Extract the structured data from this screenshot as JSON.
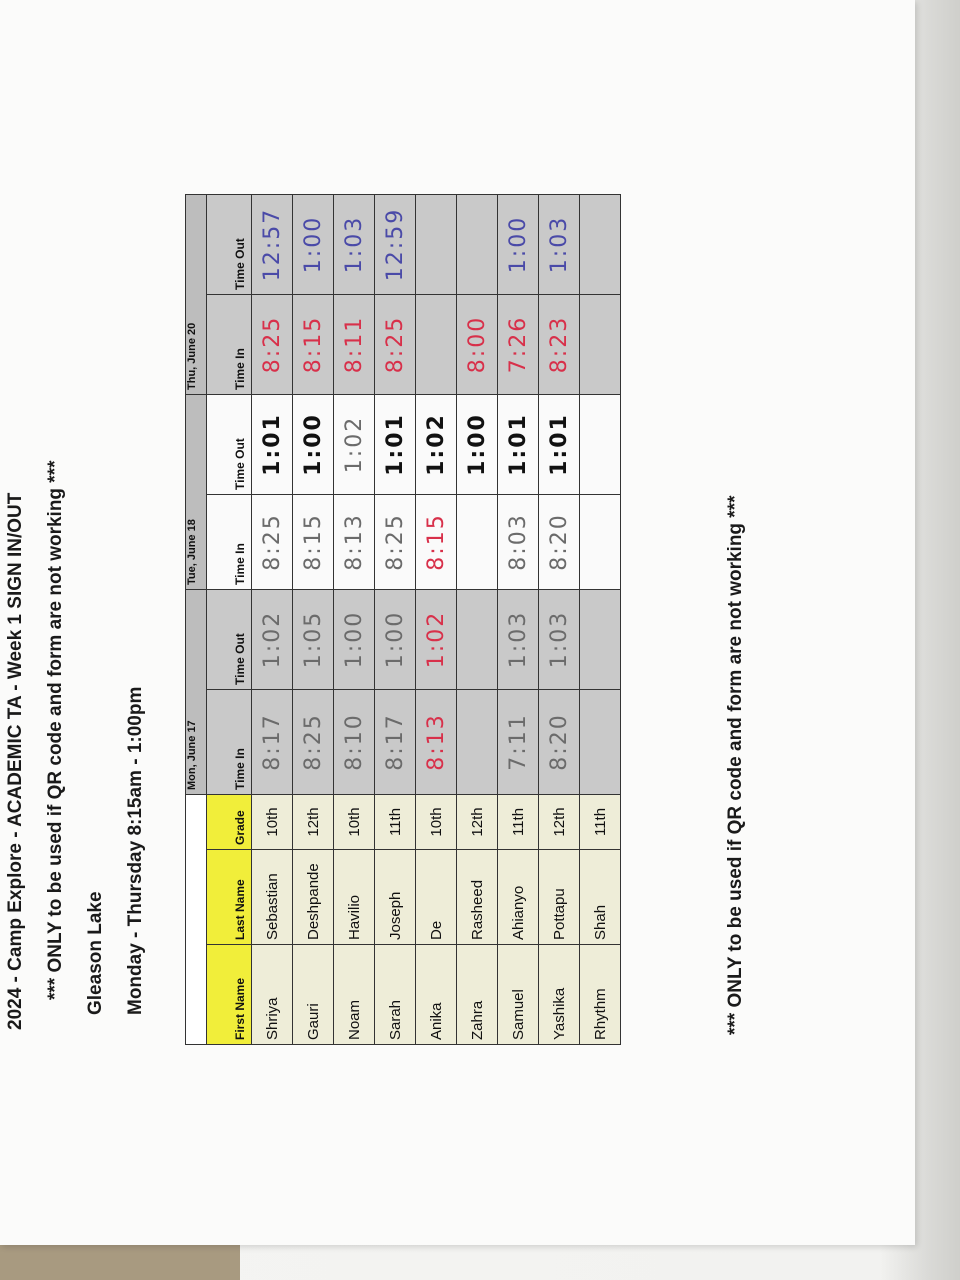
{
  "header": {
    "title": "2024 - Camp Explore - ACADEMIC TA - Week 1 SIGN IN/OUT",
    "notice": "*** ONLY to be used if QR code and form are not working ***",
    "location": "Gleason Lake",
    "schedule": "Monday - Thursday 8:15am - 1:00pm"
  },
  "table": {
    "days": [
      "Mon, June 17",
      "Tue, June 18",
      "Thu, June 20"
    ],
    "columns": [
      "First Name",
      "Last Name",
      "Grade",
      "Time In",
      "Time Out",
      "Time In",
      "Time Out",
      "Time In",
      "Time Out"
    ],
    "rows": [
      {
        "first": "Shriya",
        "last": "Sebastian",
        "grade": "10th",
        "times": [
          [
            "8:17",
            "pencil"
          ],
          [
            "1:02",
            "pencil"
          ],
          [
            "8:25",
            "pencil"
          ],
          [
            "1:01",
            "black"
          ],
          [
            "8:25",
            "red"
          ],
          [
            "12:57",
            "blue"
          ]
        ]
      },
      {
        "first": "Gauri",
        "last": "Deshpande",
        "grade": "12th",
        "times": [
          [
            "8:25",
            "pencil"
          ],
          [
            "1:05",
            "pencil"
          ],
          [
            "8:15",
            "pencil"
          ],
          [
            "1:00",
            "black"
          ],
          [
            "8:15",
            "red"
          ],
          [
            "1:00",
            "blue"
          ]
        ]
      },
      {
        "first": "Noam",
        "last": "Havilio",
        "grade": "10th",
        "times": [
          [
            "8:10",
            "pencil"
          ],
          [
            "1:00",
            "pencil"
          ],
          [
            "8:13",
            "pencil"
          ],
          [
            "1:02",
            "pencil"
          ],
          [
            "8:11",
            "red"
          ],
          [
            "1:03",
            "blue"
          ]
        ]
      },
      {
        "first": "Sarah",
        "last": "Joseph",
        "grade": "11th",
        "times": [
          [
            "8:17",
            "pencil"
          ],
          [
            "1:00",
            "pencil"
          ],
          [
            "8:25",
            "pencil"
          ],
          [
            "1:01",
            "black"
          ],
          [
            "8:25",
            "red"
          ],
          [
            "12:59",
            "blue"
          ]
        ]
      },
      {
        "first": "Anika",
        "last": "De",
        "grade": "10th",
        "times": [
          [
            "8:13",
            "red"
          ],
          [
            "1:02",
            "red"
          ],
          [
            "8:15",
            "red"
          ],
          [
            "1:02",
            "black"
          ],
          [
            "",
            ""
          ],
          [
            "",
            ""
          ]
        ]
      },
      {
        "first": "Zahra",
        "last": "Rasheed",
        "grade": "12th",
        "times": [
          [
            "",
            ""
          ],
          [
            "",
            ""
          ],
          [
            "",
            ""
          ],
          [
            "1:00",
            "black"
          ],
          [
            "8:00",
            "red"
          ],
          [
            "",
            ""
          ]
        ]
      },
      {
        "first": "Samuel",
        "last": "Ahianyo",
        "grade": "11th",
        "times": [
          [
            "7:11",
            "pencil"
          ],
          [
            "1:03",
            "pencil"
          ],
          [
            "8:03",
            "pencil"
          ],
          [
            "1:01",
            "black"
          ],
          [
            "7:26",
            "red"
          ],
          [
            "1:00",
            "blue"
          ]
        ]
      },
      {
        "first": "Yashika",
        "last": "Pottapu",
        "grade": "12th",
        "times": [
          [
            "8:20",
            "pencil"
          ],
          [
            "1:03",
            "pencil"
          ],
          [
            "8:20",
            "pencil"
          ],
          [
            "1:01",
            "black"
          ],
          [
            "8:23",
            "red"
          ],
          [
            "1:03",
            "blue"
          ]
        ]
      },
      {
        "first": "Rhythm",
        "last": "Shah",
        "grade": "11th",
        "times": [
          [
            "",
            ""
          ],
          [
            "",
            ""
          ],
          [
            "",
            ""
          ],
          [
            "",
            ""
          ],
          [
            "",
            ""
          ],
          [
            "",
            ""
          ]
        ]
      }
    ]
  },
  "footer": {
    "notice": "*** ONLY to be used if QR code and form are not working ***"
  },
  "ink_colors": {
    "pencil": "#6b6b6b",
    "red": "#d8304a",
    "black": "#111111",
    "blue": "#4a4aa8"
  },
  "colors": {
    "header_yellow": "#f1ee3a",
    "name_cream": "#eeedd8",
    "shaded_gray": "#c9c9c9"
  }
}
